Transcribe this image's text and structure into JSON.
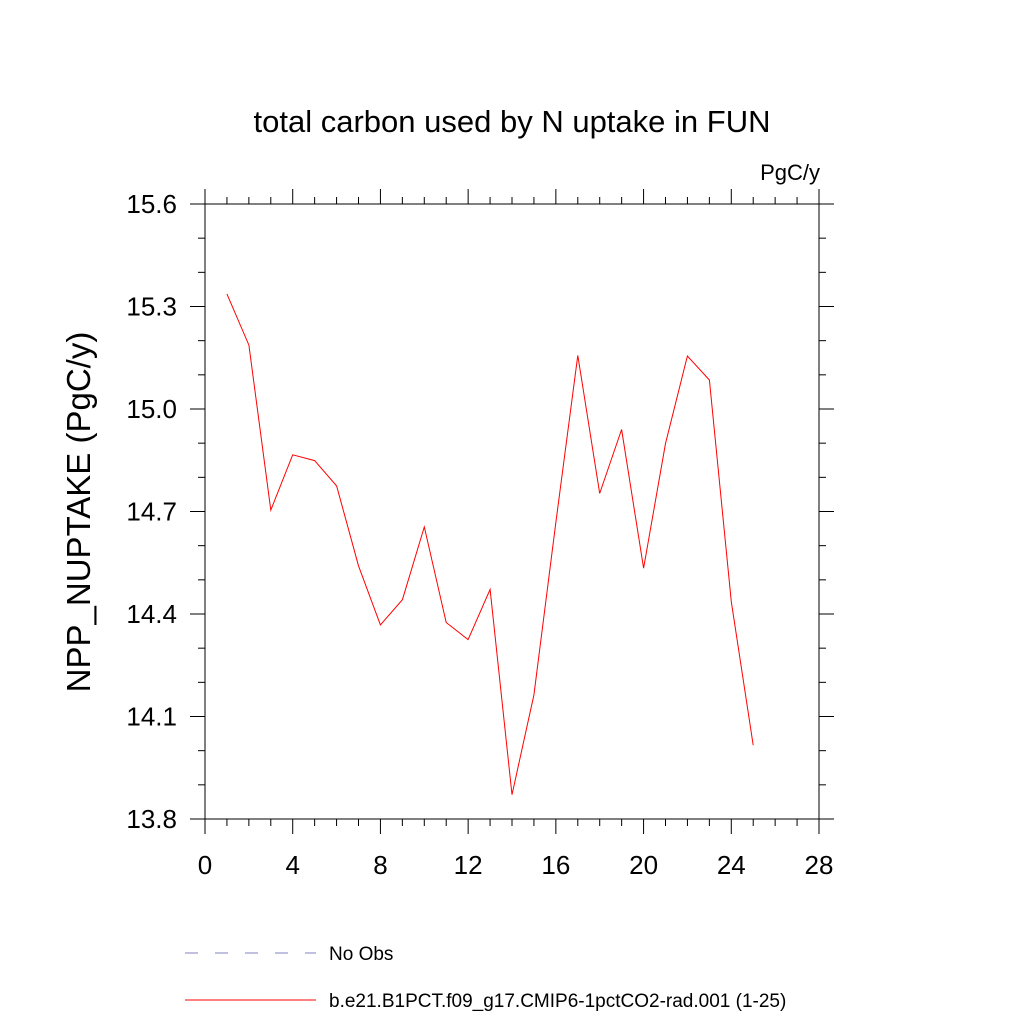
{
  "chart_data": {
    "type": "line",
    "title": "total carbon used by N uptake in FUN",
    "units_label": "PgC/y",
    "ylabel": "NPP_NUPTAKE  (PgC/y)",
    "xlabel": "",
    "xlim": [
      0,
      28
    ],
    "ylim": [
      13.8,
      15.6
    ],
    "x_ticks": [
      "0",
      "4",
      "8",
      "12",
      "16",
      "20",
      "24",
      "28"
    ],
    "y_ticks": [
      "13.8",
      "14.1",
      "14.4",
      "14.7",
      "15.0",
      "15.3",
      "15.6"
    ],
    "grid": false,
    "legend_placement": "bottom",
    "series": [
      {
        "name": "b.e21.B1PCT.f09_g17.CMIP6-1pctCO2-rad.001 (1-25)",
        "color": "#ff0000",
        "style": "solid",
        "x": [
          1,
          2,
          3,
          4,
          5,
          6,
          7,
          8,
          9,
          10,
          11,
          12,
          13,
          14,
          15,
          16,
          17,
          18,
          19,
          20,
          21,
          22,
          23,
          24,
          25
        ],
        "values": [
          15.337,
          15.187,
          14.704,
          14.866,
          14.849,
          14.775,
          14.541,
          14.368,
          14.442,
          14.655,
          14.375,
          14.325,
          14.472,
          13.871,
          14.163,
          14.669,
          15.157,
          14.753,
          14.94,
          14.534,
          14.899,
          15.155,
          15.085,
          14.436,
          14.016
        ]
      }
    ],
    "legend": [
      {
        "name": "No Obs",
        "color": "#8080c0",
        "style": "dashed"
      },
      {
        "name": "b.e21.B1PCT.f09_g17.CMIP6-1pctCO2-rad.001 (1-25)",
        "color": "#ff0000",
        "style": "solid"
      }
    ]
  }
}
